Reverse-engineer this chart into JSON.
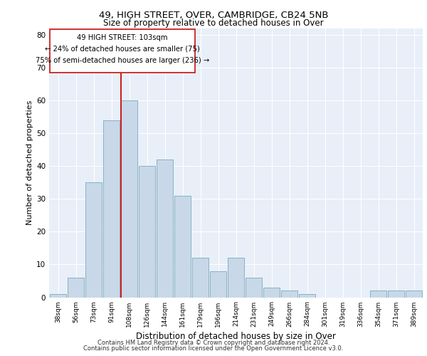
{
  "title1": "49, HIGH STREET, OVER, CAMBRIDGE, CB24 5NB",
  "title2": "Size of property relative to detached houses in Over",
  "xlabel": "Distribution of detached houses by size in Over",
  "ylabel": "Number of detached properties",
  "categories": [
    "38sqm",
    "56sqm",
    "73sqm",
    "91sqm",
    "108sqm",
    "126sqm",
    "144sqm",
    "161sqm",
    "179sqm",
    "196sqm",
    "214sqm",
    "231sqm",
    "249sqm",
    "266sqm",
    "284sqm",
    "301sqm",
    "319sqm",
    "336sqm",
    "354sqm",
    "371sqm",
    "389sqm"
  ],
  "values": [
    1,
    6,
    35,
    54,
    60,
    40,
    42,
    31,
    12,
    8,
    12,
    6,
    3,
    2,
    1,
    0,
    0,
    0,
    2,
    2,
    2
  ],
  "bar_color": "#c8d8e8",
  "bar_edge_color": "#7aaabb",
  "vline_x_index": 3.55,
  "marker_label": "49 HIGH STREET: 103sqm",
  "annotation_line1": "← 24% of detached houses are smaller (75)",
  "annotation_line2": "75% of semi-detached houses are larger (236) →",
  "vline_color": "#cc2222",
  "box_color": "#cc2222",
  "ylim": [
    0,
    82
  ],
  "yticks": [
    0,
    10,
    20,
    30,
    40,
    50,
    60,
    70,
    80
  ],
  "background_color": "#e8eff8",
  "footer1": "Contains HM Land Registry data © Crown copyright and database right 2024.",
  "footer2": "Contains public sector information licensed under the Open Government Licence v3.0."
}
